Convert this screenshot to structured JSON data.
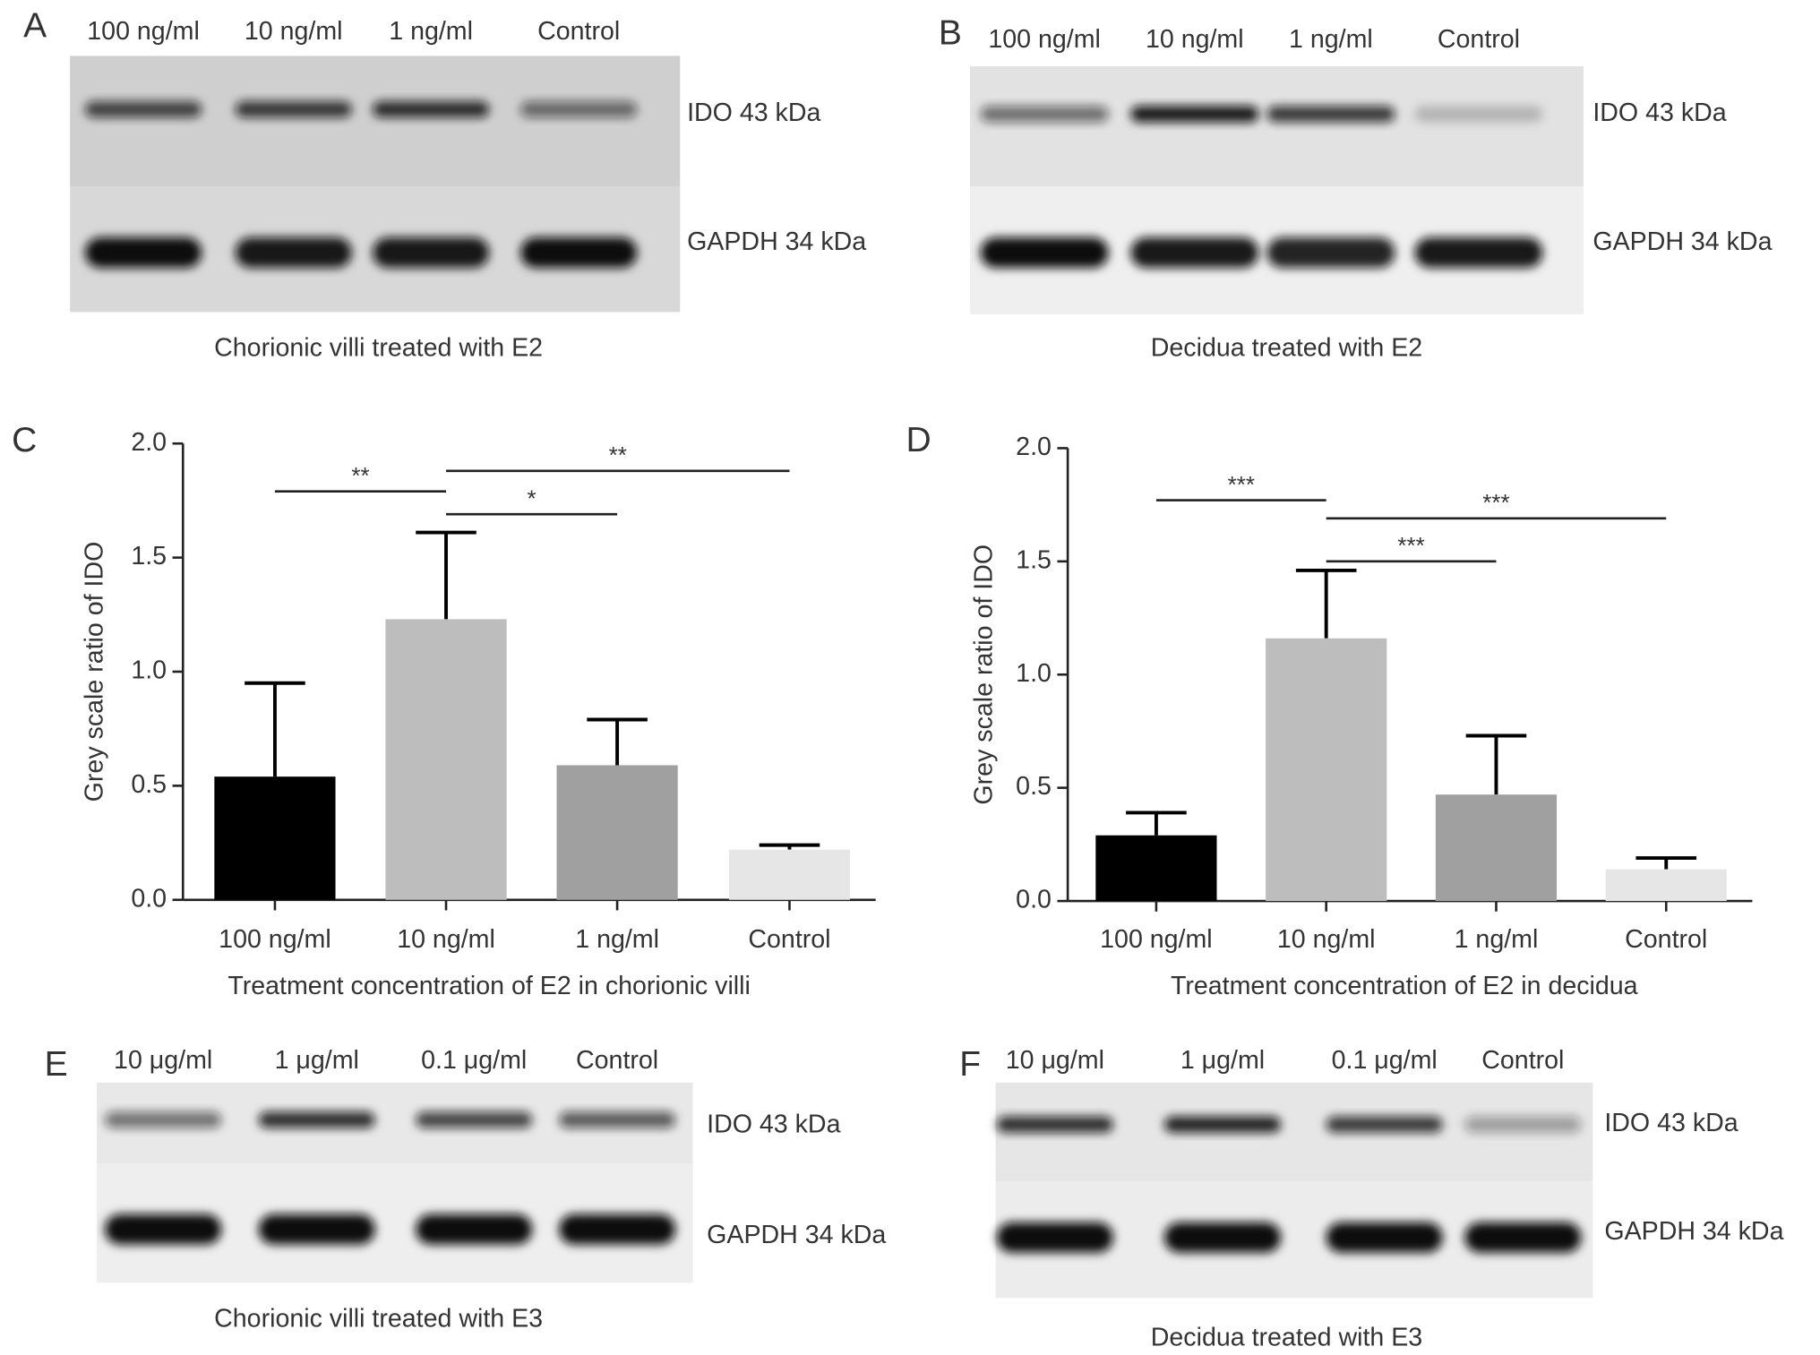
{
  "blots": [
    {
      "panel": "A",
      "lanes": [
        "100 ng/ml",
        "10 ng/ml",
        "1 ng/ml",
        "Control"
      ],
      "bands": [
        "IDO 43 kDa",
        "GAPDH 34 kDa"
      ],
      "caption": "Chorionic villi treated with E2"
    },
    {
      "panel": "B",
      "lanes": [
        "100 ng/ml",
        "10 ng/ml",
        "1 ng/ml",
        "Control"
      ],
      "bands": [
        "IDO 43 kDa",
        "GAPDH 34 kDa"
      ],
      "caption": "Decidua treated with E2"
    },
    {
      "panel": "E",
      "lanes": [
        "10 μg/ml",
        "1 μg/ml",
        "0.1 μg/ml",
        "Control"
      ],
      "bands": [
        "IDO 43 kDa",
        "GAPDH 34 kDa"
      ],
      "caption": "Chorionic villi treated with E3"
    },
    {
      "panel": "F",
      "lanes": [
        "10 μg/ml",
        "1 μg/ml",
        "0.1 μg/ml",
        "Control"
      ],
      "bands": [
        "IDO 43 kDa",
        "GAPDH 34 kDa"
      ],
      "caption": "Decidua treated with E3"
    }
  ],
  "chart_data": [
    {
      "panel": "C",
      "type": "bar",
      "y_label": "Grey scale ratio of IDO",
      "x_label": "Treatment concentration of E2 in chorionic villi",
      "categories": [
        "100 ng/ml",
        "10 ng/ml",
        "1 ng/ml",
        "Control"
      ],
      "values": [
        0.54,
        1.23,
        0.59,
        0.22
      ],
      "errors": [
        0.41,
        0.38,
        0.2,
        0.02
      ],
      "colors": [
        "#000000",
        "#bdbdbd",
        "#a0a0a0",
        "#e6e6e6"
      ],
      "ylim": [
        0,
        2
      ],
      "yticks": [
        {
          "value": 0,
          "label": "0.0"
        },
        0.5,
        {
          "value": 1,
          "label": "1.0"
        },
        1.5,
        {
          "value": 2,
          "label": "2.0"
        }
      ],
      "annotations": [
        {
          "from": 0,
          "to": 1,
          "y": 1.79,
          "label": "**"
        },
        {
          "from": 1,
          "to": 2,
          "y": 1.69,
          "label": "*"
        },
        {
          "from": 1,
          "to": 3,
          "y": 1.88,
          "label": "**"
        }
      ]
    },
    {
      "panel": "D",
      "type": "bar",
      "y_label": "Grey scale ratio of IDO",
      "x_label": "Treatment concentration of E2 in decidua",
      "categories": [
        "100 ng/ml",
        "10 ng/ml",
        "1 ng/ml",
        "Control"
      ],
      "values": [
        0.29,
        1.16,
        0.47,
        0.14
      ],
      "errors": [
        0.1,
        0.3,
        0.26,
        0.05
      ],
      "colors": [
        "#000000",
        "#bdbdbd",
        "#a0a0a0",
        "#e6e6e6"
      ],
      "ylim": [
        0,
        2
      ],
      "yticks": [
        {
          "value": 0,
          "label": "0.0"
        },
        0.5,
        {
          "value": 1,
          "label": "1.0"
        },
        1.5,
        {
          "value": 2,
          "label": "2.0"
        }
      ],
      "annotations": [
        {
          "from": 0,
          "to": 1,
          "y": 1.77,
          "label": "***"
        },
        {
          "from": 1,
          "to": 2,
          "y": 1.5,
          "label": "***"
        },
        {
          "from": 1,
          "to": 3,
          "y": 1.69,
          "label": "***"
        }
      ]
    }
  ]
}
